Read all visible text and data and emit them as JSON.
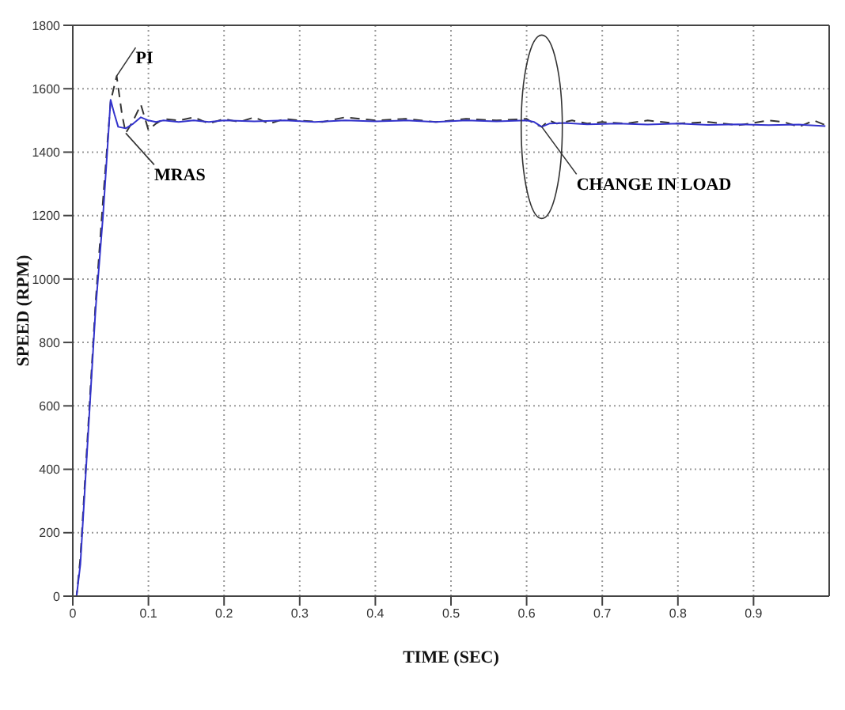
{
  "chart_data": {
    "type": "line",
    "xlabel": "TIME (SEC)",
    "ylabel": "SPEED (RPM)",
    "xlim": [
      0,
      1
    ],
    "xticks": [
      0,
      0.1,
      0.2,
      0.3,
      0.4,
      0.5,
      0.6,
      0.7,
      0.8,
      0.9
    ],
    "ylim": [
      0,
      1800
    ],
    "yticks": [
      0,
      200,
      400,
      600,
      800,
      1000,
      1200,
      1400,
      1600,
      1800
    ],
    "grid": true,
    "legend": false,
    "series": [
      {
        "color": "#333333",
        "line_style": "dashed",
        "x": [
          0,
          0.005,
          0.01,
          0.02,
          0.03,
          0.04,
          0.05,
          0.058,
          0.065,
          0.07,
          0.08,
          0.09,
          0.1,
          0.11,
          0.12,
          0.14,
          0.16,
          0.18,
          0.2,
          0.22,
          0.24,
          0.26,
          0.28,
          0.3,
          0.33,
          0.36,
          0.4,
          0.44,
          0.48,
          0.52,
          0.56,
          0.6,
          0.61,
          0.62,
          0.63,
          0.64,
          0.66,
          0.68,
          0.7,
          0.73,
          0.76,
          0.8,
          0.84,
          0.88,
          0.92,
          0.94,
          0.96,
          0.98,
          0.995
        ],
        "values": [
          0,
          0,
          120,
          520,
          920,
          1250,
          1560,
          1640,
          1520,
          1460,
          1500,
          1550,
          1470,
          1490,
          1505,
          1500,
          1510,
          1490,
          1505,
          1495,
          1510,
          1490,
          1505,
          1500,
          1495,
          1510,
          1500,
          1505,
          1495,
          1505,
          1500,
          1505,
          1490,
          1480,
          1500,
          1490,
          1500,
          1490,
          1495,
          1490,
          1500,
          1490,
          1495,
          1485,
          1500,
          1495,
          1480,
          1500,
          1485
        ]
      },
      {
        "color": "#3333cc",
        "x": [
          0,
          0.005,
          0.01,
          0.02,
          0.03,
          0.04,
          0.05,
          0.055,
          0.06,
          0.07,
          0.08,
          0.09,
          0.1,
          0.11,
          0.12,
          0.14,
          0.16,
          0.18,
          0.2,
          0.24,
          0.28,
          0.32,
          0.36,
          0.4,
          0.44,
          0.48,
          0.52,
          0.56,
          0.6,
          0.61,
          0.62,
          0.63,
          0.65,
          0.68,
          0.72,
          0.76,
          0.8,
          0.84,
          0.88,
          0.92,
          0.96,
          0.995
        ],
        "values": [
          0,
          0,
          100,
          500,
          900,
          1200,
          1565,
          1520,
          1480,
          1475,
          1490,
          1510,
          1500,
          1495,
          1500,
          1495,
          1500,
          1495,
          1500,
          1497,
          1500,
          1495,
          1500,
          1497,
          1500,
          1495,
          1500,
          1497,
          1500,
          1495,
          1480,
          1490,
          1492,
          1488,
          1490,
          1487,
          1490,
          1486,
          1488,
          1485,
          1487,
          1482
        ]
      }
    ],
    "annotations": [
      {
        "text": "PI",
        "x": 0.058,
        "y": 1640
      },
      {
        "text": "MRAS",
        "x": 0.07,
        "y": 1460
      },
      {
        "text": "CHANGE IN LOAD",
        "x": 0.62,
        "y": 1480
      }
    ]
  }
}
